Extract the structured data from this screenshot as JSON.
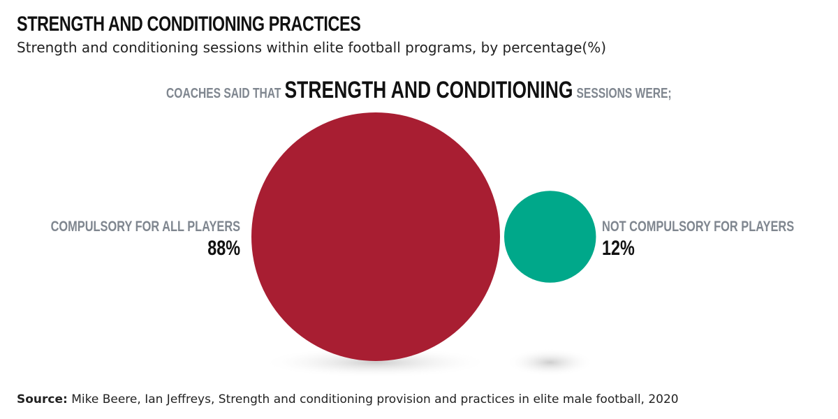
{
  "title": "STRENGTH AND CONDITIONING PRACTICES",
  "subtitle": "Strength and conditioning sessions within elite football programs, by percentage(%)",
  "headline": {
    "prefix": "COACHES SAID THAT",
    "emphasis": "STRENGTH AND CONDITIONING",
    "suffix": "SESSIONS WERE;"
  },
  "source": {
    "label": "Source:",
    "text": "Mike Beere, Ian Jeffreys, Strength and conditioning provision and practices in elite male football, 2020"
  },
  "chart_data": {
    "type": "bubble",
    "title": "STRENGTH AND CONDITIONING PRACTICES",
    "categories": [
      "COMPULSORY FOR ALL PLAYERS",
      "NOT COMPULSORY FOR PLAYERS"
    ],
    "values": [
      88,
      12
    ],
    "value_labels": [
      "88%",
      "12%"
    ],
    "colors": [
      "#a81e32",
      "#00a88a"
    ],
    "unit": "%"
  }
}
